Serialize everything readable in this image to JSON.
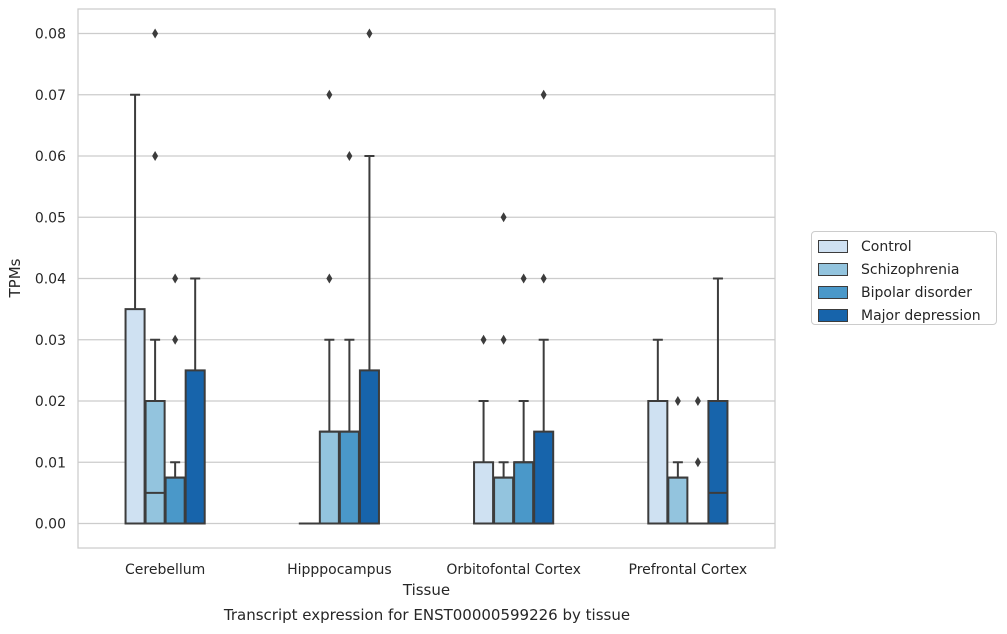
{
  "chart_data": {
    "type": "box",
    "caption": "Transcript expression for ENST00000599226 by tissue",
    "xlabel": "Tissue",
    "ylabel": "TPMs",
    "ylim": [
      -0.004,
      0.084
    ],
    "yticks": [
      "0.00",
      "0.01",
      "0.02",
      "0.03",
      "0.04",
      "0.05",
      "0.06",
      "0.07",
      "0.08"
    ],
    "grid": "horizontal",
    "legend_position": "right, outside",
    "categories": [
      "Cerebellum",
      "Hipppocampus",
      "Orbitofontal Cortex",
      "Prefrontal Cortex"
    ],
    "series": [
      {
        "name": "Control",
        "color": "#cfe1f2",
        "boxes": [
          {
            "q1": 0.0,
            "median": 0.0,
            "q3": 0.035,
            "whisker_low": 0.0,
            "whisker_high": 0.07,
            "fliers": []
          },
          {
            "q1": 0.0,
            "median": 0.0,
            "q3": 0.0,
            "whisker_low": 0.0,
            "whisker_high": 0.0,
            "fliers": []
          },
          {
            "q1": 0.0,
            "median": 0.0,
            "q3": 0.01,
            "whisker_low": 0.0,
            "whisker_high": 0.02,
            "fliers": [
              0.03
            ]
          },
          {
            "q1": 0.0,
            "median": 0.0,
            "q3": 0.02,
            "whisker_low": 0.0,
            "whisker_high": 0.03,
            "fliers": []
          }
        ]
      },
      {
        "name": "Schizophrenia",
        "color": "#93c4de",
        "boxes": [
          {
            "q1": 0.0,
            "median": 0.005,
            "q3": 0.02,
            "whisker_low": 0.0,
            "whisker_high": 0.03,
            "fliers": [
              0.06,
              0.08
            ]
          },
          {
            "q1": 0.0,
            "median": 0.015,
            "q3": 0.015,
            "whisker_low": 0.0,
            "whisker_high": 0.03,
            "fliers": [
              0.04,
              0.07
            ]
          },
          {
            "q1": 0.0,
            "median": 0.0075,
            "q3": 0.0075,
            "whisker_low": 0.0,
            "whisker_high": 0.01,
            "fliers": [
              0.03,
              0.05
            ]
          },
          {
            "q1": 0.0,
            "median": 0.0075,
            "q3": 0.0075,
            "whisker_low": 0.0,
            "whisker_high": 0.01,
            "fliers": [
              0.02
            ]
          }
        ]
      },
      {
        "name": "Bipolar disorder",
        "color": "#4a98c9",
        "boxes": [
          {
            "q1": 0.0,
            "median": 0.0075,
            "q3": 0.0075,
            "whisker_low": 0.0,
            "whisker_high": 0.01,
            "fliers": [
              0.03,
              0.04
            ]
          },
          {
            "q1": 0.0,
            "median": 0.015,
            "q3": 0.015,
            "whisker_low": 0.0,
            "whisker_high": 0.03,
            "fliers": [
              0.06
            ]
          },
          {
            "q1": 0.0,
            "median": 0.01,
            "q3": 0.01,
            "whisker_low": 0.0,
            "whisker_high": 0.02,
            "fliers": [
              0.04
            ]
          },
          {
            "q1": 0.0,
            "median": 0.0,
            "q3": 0.0,
            "whisker_low": 0.0,
            "whisker_high": 0.0,
            "fliers": [
              0.01,
              0.02
            ]
          }
        ]
      },
      {
        "name": "Major depression",
        "color": "#1764ab",
        "boxes": [
          {
            "q1": 0.0,
            "median": 0.0,
            "q3": 0.025,
            "whisker_low": 0.0,
            "whisker_high": 0.04,
            "fliers": []
          },
          {
            "q1": 0.0,
            "median": 0.0,
            "q3": 0.025,
            "whisker_low": 0.0,
            "whisker_high": 0.06,
            "fliers": [
              0.08
            ]
          },
          {
            "q1": 0.0,
            "median": 0.0,
            "q3": 0.015,
            "whisker_low": 0.0,
            "whisker_high": 0.03,
            "fliers": [
              0.04,
              0.07
            ]
          },
          {
            "q1": 0.0,
            "median": 0.005,
            "q3": 0.02,
            "whisker_low": 0.0,
            "whisker_high": 0.04,
            "fliers": []
          }
        ]
      }
    ]
  }
}
